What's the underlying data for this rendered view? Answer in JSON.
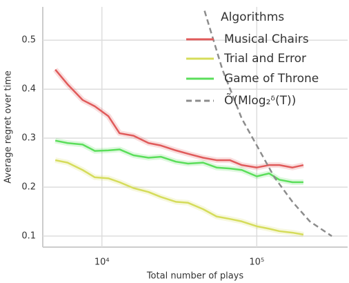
{
  "chart_data": {
    "type": "line",
    "x_label": "Total number of plays",
    "y_label": "Average regret over time",
    "xscale": "log",
    "xlim": [
      4150,
      386000
    ],
    "ylim": [
      0.0775,
      0.568
    ],
    "xticks": [
      {
        "value": 10000,
        "label": "10⁴"
      },
      {
        "value": 100000,
        "label": "10⁵"
      }
    ],
    "yticks": [
      0.1,
      0.2,
      0.3,
      0.4,
      0.5
    ],
    "grid": true,
    "legend_title": "Algorithms",
    "legend_position": "upper right",
    "series": [
      {
        "name": "Musical Chairs",
        "color": "#e05a5a",
        "dash": false,
        "x": [
          5000,
          6000,
          7500,
          9000,
          11000,
          13000,
          16000,
          20000,
          24000,
          30000,
          36000,
          45000,
          55000,
          67000,
          80000,
          100000,
          120000,
          140000,
          170000,
          200000
        ],
        "values": [
          0.44,
          0.41,
          0.378,
          0.365,
          0.345,
          0.31,
          0.305,
          0.29,
          0.285,
          0.275,
          0.268,
          0.26,
          0.255,
          0.255,
          0.245,
          0.24,
          0.245,
          0.245,
          0.24,
          0.245
        ]
      },
      {
        "name": "Trial and Error",
        "color": "#d5dc5a",
        "dash": false,
        "x": [
          5000,
          6000,
          7500,
          9000,
          11000,
          13000,
          16000,
          20000,
          24000,
          30000,
          36000,
          45000,
          55000,
          67000,
          80000,
          100000,
          120000,
          140000,
          170000,
          200000
        ],
        "values": [
          0.255,
          0.25,
          0.235,
          0.22,
          0.218,
          0.21,
          0.198,
          0.19,
          0.18,
          0.17,
          0.168,
          0.155,
          0.14,
          0.135,
          0.13,
          0.12,
          0.115,
          0.11,
          0.107,
          0.103
        ]
      },
      {
        "name": "Game of Throne",
        "color": "#5ade5a",
        "dash": false,
        "x": [
          5000,
          6000,
          7500,
          9000,
          11000,
          13000,
          16000,
          20000,
          24000,
          30000,
          36000,
          45000,
          55000,
          67000,
          80000,
          100000,
          120000,
          140000,
          170000,
          200000
        ],
        "values": [
          0.295,
          0.29,
          0.287,
          0.274,
          0.275,
          0.277,
          0.265,
          0.26,
          0.262,
          0.252,
          0.248,
          0.25,
          0.24,
          0.238,
          0.235,
          0.222,
          0.228,
          0.215,
          0.21,
          0.21
        ]
      },
      {
        "name": "Õ(Mlog₂ᵟ(T))",
        "color": "#8c8c8c",
        "dash": true,
        "x": [
          46000,
          60000,
          80000,
          100000,
          130000,
          170000,
          220000,
          305000
        ],
        "values": [
          0.56,
          0.44,
          0.34,
          0.285,
          0.22,
          0.17,
          0.13,
          0.1
        ]
      }
    ]
  }
}
